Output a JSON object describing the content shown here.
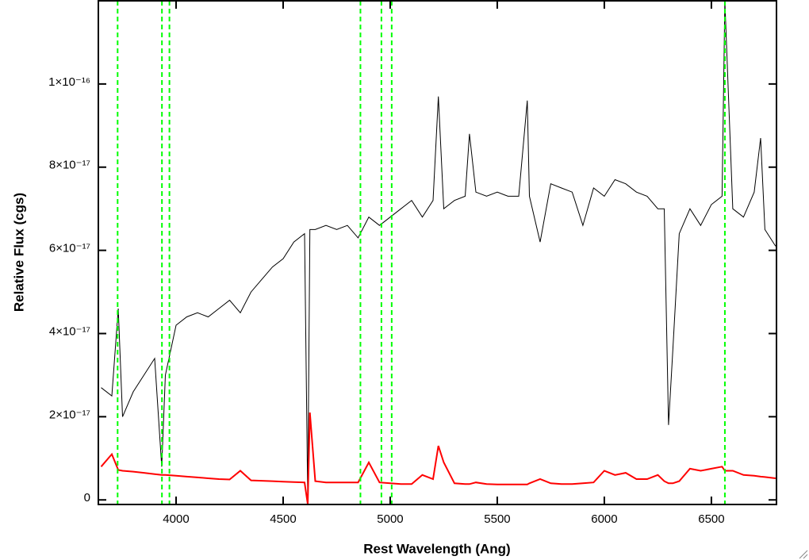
{
  "chart_data": {
    "type": "line",
    "xlabel": "Rest Wavelength (Ang)",
    "ylabel": "Relative Flux (cgs)",
    "x": [
      3650,
      3700,
      3730,
      3750,
      3800,
      3850,
      3900,
      3933,
      3950,
      4000,
      4050,
      4100,
      4150,
      4200,
      4250,
      4300,
      4350,
      4400,
      4450,
      4500,
      4550,
      4600,
      4615,
      4625,
      4650,
      4700,
      4750,
      4800,
      4850,
      4900,
      4950,
      5000,
      5050,
      5100,
      5150,
      5200,
      5225,
      5250,
      5300,
      5350,
      5370,
      5400,
      5450,
      5500,
      5550,
      5600,
      5640,
      5650,
      5700,
      5750,
      5800,
      5850,
      5900,
      5950,
      6000,
      6050,
      6100,
      6150,
      6200,
      6250,
      6280,
      6300,
      6320,
      6350,
      6400,
      6450,
      6500,
      6550,
      6563,
      6600,
      6650,
      6700,
      6730,
      6750,
      6800
    ],
    "series": [
      {
        "color": "#000000",
        "values": [
          2.7e-17,
          2.5e-17,
          4.6e-17,
          2e-17,
          2.6e-17,
          3e-17,
          3.4e-17,
          8e-18,
          3e-17,
          4.2e-17,
          4.4e-17,
          4.5e-17,
          4.4e-17,
          4.6e-17,
          4.8e-17,
          4.5e-17,
          5e-17,
          5.3e-17,
          5.6e-17,
          5.8e-17,
          6.2e-17,
          6.4e-17,
          0,
          6.5e-17,
          6.5e-17,
          6.6e-17,
          6.5e-17,
          6.6e-17,
          6.3e-17,
          6.8e-17,
          6.6e-17,
          6.8e-17,
          7e-17,
          7.2e-17,
          6.8e-17,
          7.2e-17,
          9.7e-17,
          7e-17,
          7.2e-17,
          7.3e-17,
          8.8e-17,
          7.4e-17,
          7.3e-17,
          7.4e-17,
          7.3e-17,
          7.3e-17,
          9.6e-17,
          7.3e-17,
          6.2e-17,
          7.6e-17,
          7.5e-17,
          7.4e-17,
          6.6e-17,
          7.5e-17,
          7.3e-17,
          7.7e-17,
          7.6e-17,
          7.4e-17,
          7.3e-17,
          7e-17,
          7e-17,
          1.8e-17,
          3.6e-17,
          6.4e-17,
          7e-17,
          6.6e-17,
          7.1e-17,
          7.3e-17,
          1.2e-16,
          7e-17,
          6.8e-17,
          7.4e-17,
          8.7e-17,
          6.5e-17,
          6.1e-17
        ]
      },
      {
        "color": "#ff0000",
        "values": [
          8e-18,
          1.1e-17,
          7.2e-18,
          7e-18,
          6.8e-18,
          6.5e-18,
          6.2e-18,
          6e-18,
          6e-18,
          5.8e-18,
          5.6e-18,
          5.4e-18,
          5.2e-18,
          5e-18,
          4.9e-18,
          7e-18,
          4.7e-18,
          4.6e-18,
          4.5e-18,
          4.4e-18,
          4.3e-18,
          4.2e-18,
          -1e-18,
          2.1e-17,
          4.5e-18,
          4.2e-18,
          4.2e-18,
          4.2e-18,
          4.2e-18,
          9e-18,
          4.2e-18,
          4e-18,
          3.8e-18,
          3.8e-18,
          6e-18,
          5e-18,
          1.3e-17,
          9e-18,
          4e-18,
          3.8e-18,
          3.8e-18,
          4.2e-18,
          3.8e-18,
          3.7e-18,
          3.7e-18,
          3.7e-18,
          3.7e-18,
          4e-18,
          5e-18,
          4e-18,
          3.8e-18,
          3.8e-18,
          4e-18,
          4.2e-18,
          7e-18,
          6e-18,
          6.5e-18,
          5e-18,
          5e-18,
          6e-18,
          4.5e-18,
          4e-18,
          4e-18,
          4.5e-18,
          7.5e-18,
          7e-18,
          7.5e-18,
          8e-18,
          7e-18,
          7e-18,
          6e-18,
          5.8e-18,
          5.6e-18,
          5.5e-18,
          5.2e-18
        ]
      }
    ],
    "reference_lines": {
      "color": "#00ff00",
      "x": [
        3727,
        3934,
        3969,
        4861,
        4959,
        5007,
        6563
      ]
    },
    "xlim": [
      3637,
      6804
    ],
    "ylim": [
      -1.1e-18,
      1.2e-16
    ],
    "xticks": [
      4000,
      4500,
      5000,
      5500,
      6000,
      6500
    ],
    "yticks": [
      0,
      {
        "value": 2e-17,
        "label": "2×10⁻¹⁷"
      },
      {
        "value": 4e-17,
        "label": "4×10⁻¹⁷"
      },
      {
        "value": 6e-17,
        "label": "6×10⁻¹⁷"
      },
      {
        "value": 8e-17,
        "label": "8×10⁻¹⁷"
      },
      {
        "value": 1e-16,
        "label": "1×10⁻¹⁶"
      }
    ]
  }
}
